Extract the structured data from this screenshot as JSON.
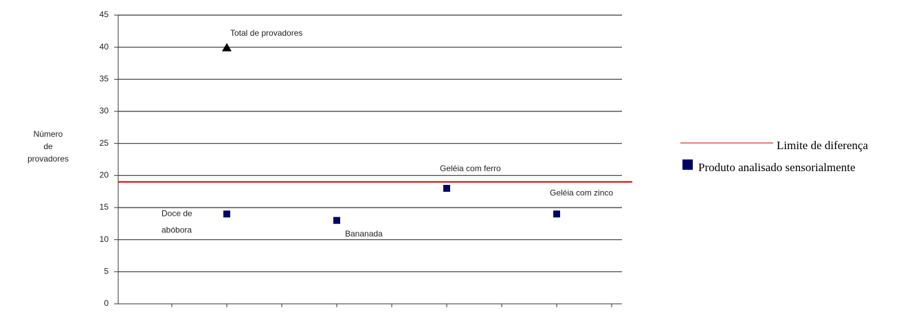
{
  "chart_data": {
    "type": "scatter",
    "ylabel": [
      "Número",
      "de",
      "provadores"
    ],
    "ylim": [
      0,
      45
    ],
    "yticks": [
      0,
      5,
      10,
      15,
      20,
      25,
      30,
      35,
      40,
      45
    ],
    "grid": true,
    "labels": [
      [
        "Doce de",
        "abóbora"
      ],
      [
        "Bananada"
      ],
      [
        "Geléia com ferro"
      ],
      [
        "Geléia com zinco"
      ]
    ],
    "series": [
      {
        "name": "Produto analisado sensorialmente",
        "color": "#000066",
        "marker": "square",
        "values": [
          14,
          13,
          18,
          14
        ]
      }
    ],
    "reference_point": {
      "label": "Total de provadores",
      "value": 40,
      "marker": "triangle",
      "color": "#000000"
    },
    "hline": {
      "name": "Limite de diferença",
      "value": 19,
      "color": "#cc0000"
    },
    "legend": "right"
  }
}
